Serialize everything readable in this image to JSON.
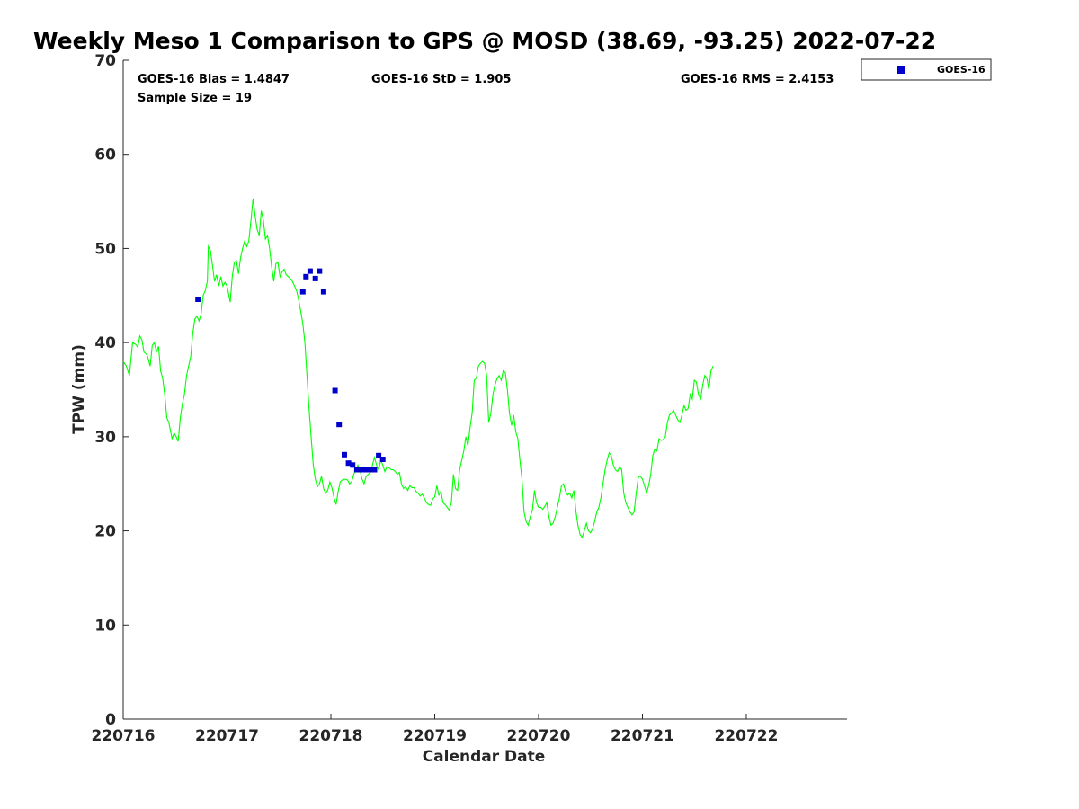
{
  "chart_data": {
    "type": "line",
    "title": "Weekly Meso 1 Comparison to GPS @ MOSD (38.69, -93.25) 2022-07-22",
    "xlabel": "Calendar Date",
    "ylabel": "TPW (mm)",
    "xlim": [
      0,
      6.97
    ],
    "ylim": [
      0,
      70
    ],
    "x_ticks": [
      {
        "pos": 0,
        "label": "220716"
      },
      {
        "pos": 1,
        "label": "220717"
      },
      {
        "pos": 2,
        "label": "220718"
      },
      {
        "pos": 3,
        "label": "220719"
      },
      {
        "pos": 4,
        "label": "220720"
      },
      {
        "pos": 5,
        "label": "220721"
      },
      {
        "pos": 6,
        "label": "220722"
      }
    ],
    "y_ticks": [
      0,
      10,
      20,
      30,
      40,
      50,
      60,
      70
    ],
    "grid": false,
    "legend_position": "outside-top-right",
    "stats": {
      "bias": "GOES-16 Bias = 1.4847",
      "std": "GOES-16 StD = 1.905",
      "rms": "GOES-16 RMS = 2.4153",
      "sample": "Sample Size = 19"
    },
    "series": [
      {
        "kind": "line",
        "color": "#00ff00",
        "points": [
          [
            0.0,
            38.0
          ],
          [
            0.03,
            37.5
          ],
          [
            0.06,
            36.5
          ],
          [
            0.09,
            40.0
          ],
          [
            0.12,
            39.8
          ],
          [
            0.14,
            39.5
          ],
          [
            0.16,
            40.7
          ],
          [
            0.18,
            40.3
          ],
          [
            0.2,
            39.0
          ],
          [
            0.23,
            38.7
          ],
          [
            0.26,
            37.5
          ],
          [
            0.28,
            39.7
          ],
          [
            0.3,
            40.0
          ],
          [
            0.32,
            39.0
          ],
          [
            0.34,
            39.6
          ],
          [
            0.36,
            37.0
          ],
          [
            0.38,
            36.2
          ],
          [
            0.4,
            34.5
          ],
          [
            0.42,
            32.0
          ],
          [
            0.44,
            31.5
          ],
          [
            0.47,
            29.8
          ],
          [
            0.49,
            30.4
          ],
          [
            0.51,
            30.0
          ],
          [
            0.53,
            29.5
          ],
          [
            0.55,
            32.0
          ],
          [
            0.57,
            33.5
          ],
          [
            0.59,
            34.5
          ],
          [
            0.61,
            36.5
          ],
          [
            0.63,
            37.5
          ],
          [
            0.65,
            38.5
          ],
          [
            0.67,
            41.0
          ],
          [
            0.69,
            42.5
          ],
          [
            0.71,
            42.8
          ],
          [
            0.73,
            42.3
          ],
          [
            0.75,
            43.0
          ],
          [
            0.77,
            45.0
          ],
          [
            0.79,
            45.5
          ],
          [
            0.81,
            46.5
          ],
          [
            0.82,
            50.2
          ],
          [
            0.84,
            49.8
          ],
          [
            0.86,
            48.2
          ],
          [
            0.88,
            46.5
          ],
          [
            0.9,
            47.2
          ],
          [
            0.92,
            46.0
          ],
          [
            0.94,
            47.0
          ],
          [
            0.96,
            46.0
          ],
          [
            0.98,
            46.4
          ],
          [
            1.0,
            46.0
          ],
          [
            1.03,
            44.3
          ],
          [
            1.05,
            47.0
          ],
          [
            1.07,
            48.5
          ],
          [
            1.09,
            48.7
          ],
          [
            1.11,
            47.3
          ],
          [
            1.13,
            49.0
          ],
          [
            1.15,
            50.0
          ],
          [
            1.17,
            50.8
          ],
          [
            1.19,
            50.2
          ],
          [
            1.21,
            50.8
          ],
          [
            1.23,
            53.0
          ],
          [
            1.25,
            55.3
          ],
          [
            1.27,
            53.5
          ],
          [
            1.29,
            52.0
          ],
          [
            1.31,
            51.4
          ],
          [
            1.33,
            54.0
          ],
          [
            1.35,
            53.0
          ],
          [
            1.37,
            51.0
          ],
          [
            1.39,
            51.4
          ],
          [
            1.41,
            50.0
          ],
          [
            1.43,
            48.0
          ],
          [
            1.45,
            46.5
          ],
          [
            1.47,
            48.4
          ],
          [
            1.49,
            48.5
          ],
          [
            1.51,
            47.0
          ],
          [
            1.53,
            47.5
          ],
          [
            1.55,
            47.8
          ],
          [
            1.57,
            47.2
          ],
          [
            1.59,
            47.0
          ],
          [
            1.61,
            46.8
          ],
          [
            1.63,
            46.5
          ],
          [
            1.65,
            46.0
          ],
          [
            1.67,
            45.5
          ],
          [
            1.69,
            44.5
          ],
          [
            1.71,
            43.3
          ],
          [
            1.73,
            42.0
          ],
          [
            1.75,
            40.0
          ],
          [
            1.77,
            36.5
          ],
          [
            1.79,
            33.0
          ],
          [
            1.81,
            30.0
          ],
          [
            1.83,
            27.0
          ],
          [
            1.85,
            25.5
          ],
          [
            1.87,
            24.7
          ],
          [
            1.89,
            25.0
          ],
          [
            1.91,
            25.8
          ],
          [
            1.93,
            24.5
          ],
          [
            1.95,
            24.0
          ],
          [
            1.97,
            24.3
          ],
          [
            1.99,
            25.2
          ],
          [
            2.01,
            24.6
          ],
          [
            2.03,
            23.5
          ],
          [
            2.05,
            22.8
          ],
          [
            2.07,
            24.2
          ],
          [
            2.09,
            25.2
          ],
          [
            2.11,
            25.4
          ],
          [
            2.13,
            25.5
          ],
          [
            2.16,
            25.4
          ],
          [
            2.18,
            25.0
          ],
          [
            2.2,
            25.2
          ],
          [
            2.22,
            26.0
          ],
          [
            2.24,
            26.5
          ],
          [
            2.26,
            27.0
          ],
          [
            2.28,
            26.5
          ],
          [
            2.3,
            25.5
          ],
          [
            2.32,
            25.0
          ],
          [
            2.34,
            25.8
          ],
          [
            2.36,
            26.0
          ],
          [
            2.38,
            26.2
          ],
          [
            2.4,
            27.0
          ],
          [
            2.42,
            27.8
          ],
          [
            2.44,
            27.0
          ],
          [
            2.46,
            26.5
          ],
          [
            2.48,
            27.5
          ],
          [
            2.5,
            27.0
          ],
          [
            2.52,
            26.3
          ],
          [
            2.54,
            26.8
          ],
          [
            2.56,
            26.7
          ],
          [
            2.58,
            26.5
          ],
          [
            2.6,
            26.5
          ],
          [
            2.62,
            26.3
          ],
          [
            2.64,
            26.0
          ],
          [
            2.66,
            26.2
          ],
          [
            2.68,
            25.0
          ],
          [
            2.7,
            24.5
          ],
          [
            2.72,
            24.7
          ],
          [
            2.74,
            24.3
          ],
          [
            2.76,
            24.8
          ],
          [
            2.78,
            24.6
          ],
          [
            2.8,
            24.6
          ],
          [
            2.82,
            24.2
          ],
          [
            2.84,
            24.0
          ],
          [
            2.86,
            23.7
          ],
          [
            2.88,
            23.9
          ],
          [
            2.9,
            23.5
          ],
          [
            2.92,
            23.0
          ],
          [
            2.94,
            22.8
          ],
          [
            2.96,
            22.7
          ],
          [
            2.98,
            23.4
          ],
          [
            3.0,
            23.6
          ],
          [
            3.02,
            24.8
          ],
          [
            3.04,
            23.8
          ],
          [
            3.06,
            24.2
          ],
          [
            3.08,
            23.0
          ],
          [
            3.1,
            22.8
          ],
          [
            3.12,
            22.5
          ],
          [
            3.14,
            22.2
          ],
          [
            3.16,
            23.0
          ],
          [
            3.18,
            26.0
          ],
          [
            3.2,
            24.5
          ],
          [
            3.22,
            24.3
          ],
          [
            3.24,
            26.5
          ],
          [
            3.26,
            27.5
          ],
          [
            3.28,
            28.5
          ],
          [
            3.3,
            30.0
          ],
          [
            3.32,
            29.0
          ],
          [
            3.34,
            31.0
          ],
          [
            3.36,
            32.5
          ],
          [
            3.38,
            36.0
          ],
          [
            3.4,
            36.2
          ],
          [
            3.42,
            37.5
          ],
          [
            3.44,
            37.8
          ],
          [
            3.46,
            38.0
          ],
          [
            3.48,
            37.8
          ],
          [
            3.5,
            36.5
          ],
          [
            3.52,
            31.5
          ],
          [
            3.54,
            32.5
          ],
          [
            3.56,
            34.5
          ],
          [
            3.58,
            35.5
          ],
          [
            3.6,
            36.2
          ],
          [
            3.62,
            36.5
          ],
          [
            3.64,
            36.0
          ],
          [
            3.66,
            37.0
          ],
          [
            3.68,
            36.8
          ],
          [
            3.7,
            35.0
          ],
          [
            3.72,
            32.5
          ],
          [
            3.74,
            31.2
          ],
          [
            3.76,
            32.3
          ],
          [
            3.78,
            30.5
          ],
          [
            3.8,
            29.8
          ],
          [
            3.82,
            27.5
          ],
          [
            3.84,
            25.5
          ],
          [
            3.86,
            22.0
          ],
          [
            3.88,
            21.0
          ],
          [
            3.9,
            20.6
          ],
          [
            3.92,
            21.5
          ],
          [
            3.94,
            22.2
          ],
          [
            3.96,
            24.3
          ],
          [
            3.98,
            23.0
          ],
          [
            4.0,
            22.5
          ],
          [
            4.02,
            22.5
          ],
          [
            4.04,
            22.3
          ],
          [
            4.06,
            22.6
          ],
          [
            4.08,
            23.0
          ],
          [
            4.1,
            21.5
          ],
          [
            4.12,
            20.6
          ],
          [
            4.14,
            20.8
          ],
          [
            4.16,
            21.5
          ],
          [
            4.18,
            22.5
          ],
          [
            4.2,
            23.5
          ],
          [
            4.22,
            24.8
          ],
          [
            4.24,
            25.0
          ],
          [
            4.26,
            24.2
          ],
          [
            4.28,
            23.8
          ],
          [
            4.3,
            24.0
          ],
          [
            4.32,
            23.5
          ],
          [
            4.34,
            24.3
          ],
          [
            4.36,
            22.0
          ],
          [
            4.38,
            20.5
          ],
          [
            4.4,
            19.6
          ],
          [
            4.42,
            19.3
          ],
          [
            4.44,
            20.0
          ],
          [
            4.46,
            20.8
          ],
          [
            4.48,
            20.0
          ],
          [
            4.5,
            19.8
          ],
          [
            4.52,
            20.2
          ],
          [
            4.54,
            21.0
          ],
          [
            4.56,
            22.0
          ],
          [
            4.58,
            22.5
          ],
          [
            4.6,
            23.5
          ],
          [
            4.62,
            25.0
          ],
          [
            4.64,
            26.5
          ],
          [
            4.66,
            27.5
          ],
          [
            4.68,
            28.3
          ],
          [
            4.7,
            28.0
          ],
          [
            4.72,
            27.0
          ],
          [
            4.74,
            26.5
          ],
          [
            4.76,
            26.3
          ],
          [
            4.78,
            26.8
          ],
          [
            4.8,
            26.5
          ],
          [
            4.82,
            24.0
          ],
          [
            4.84,
            23.0
          ],
          [
            4.86,
            22.5
          ],
          [
            4.88,
            22.0
          ],
          [
            4.9,
            21.7
          ],
          [
            4.92,
            22.0
          ],
          [
            4.94,
            24.0
          ],
          [
            4.96,
            25.7
          ],
          [
            4.98,
            25.8
          ],
          [
            5.0,
            25.5
          ],
          [
            5.02,
            24.8
          ],
          [
            5.04,
            24.0
          ],
          [
            5.06,
            24.8
          ],
          [
            5.08,
            26.0
          ],
          [
            5.1,
            28.0
          ],
          [
            5.12,
            28.7
          ],
          [
            5.14,
            28.5
          ],
          [
            5.16,
            29.8
          ],
          [
            5.18,
            29.6
          ],
          [
            5.2,
            29.7
          ],
          [
            5.22,
            30.0
          ],
          [
            5.24,
            31.5
          ],
          [
            5.26,
            32.3
          ],
          [
            5.28,
            32.5
          ],
          [
            5.3,
            32.8
          ],
          [
            5.32,
            32.3
          ],
          [
            5.34,
            31.8
          ],
          [
            5.36,
            31.5
          ],
          [
            5.38,
            32.3
          ],
          [
            5.4,
            33.3
          ],
          [
            5.42,
            32.8
          ],
          [
            5.44,
            33.0
          ],
          [
            5.46,
            34.5
          ],
          [
            5.48,
            34.0
          ],
          [
            5.5,
            36.0
          ],
          [
            5.52,
            35.8
          ],
          [
            5.54,
            34.5
          ],
          [
            5.56,
            34.0
          ],
          [
            5.58,
            35.5
          ],
          [
            5.6,
            36.5
          ],
          [
            5.62,
            36.2
          ],
          [
            5.64,
            35.0
          ],
          [
            5.66,
            37.0
          ],
          [
            5.68,
            37.5
          ]
        ]
      },
      {
        "name": "GOES-16",
        "kind": "scatter",
        "color": "#0000cc",
        "points": [
          [
            0.72,
            44.6
          ],
          [
            1.73,
            45.4
          ],
          [
            1.76,
            47.0
          ],
          [
            1.8,
            47.6
          ],
          [
            1.85,
            46.8
          ],
          [
            1.89,
            47.6
          ],
          [
            1.93,
            45.4
          ],
          [
            2.04,
            34.9
          ],
          [
            2.08,
            31.3
          ],
          [
            2.13,
            28.1
          ],
          [
            2.17,
            27.2
          ],
          [
            2.21,
            27.0
          ],
          [
            2.25,
            26.5
          ],
          [
            2.29,
            26.5
          ],
          [
            2.33,
            26.5
          ],
          [
            2.37,
            26.5
          ],
          [
            2.42,
            26.5
          ],
          [
            2.46,
            28.0
          ],
          [
            2.5,
            27.6
          ]
        ]
      }
    ]
  }
}
